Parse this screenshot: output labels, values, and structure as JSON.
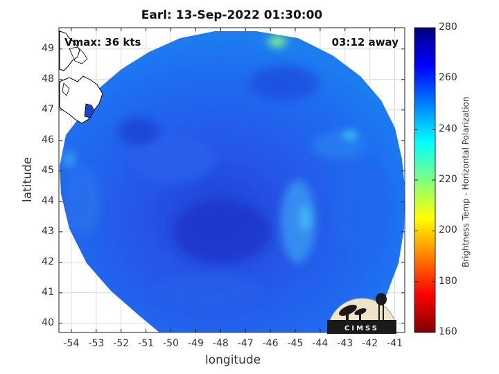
{
  "title": "Earl: 13-Sep-2022 01:30:00",
  "vmax_label": "Vmax: 36 kts",
  "away_label": "03:12 away",
  "xlabel": "longitude",
  "ylabel": "latitude",
  "logo_text": "CIMSS",
  "colorbar": {
    "label": "Brightness Temp - Horizontal Polarization",
    "min": 160,
    "max": 280,
    "ticks": [
      280,
      260,
      240,
      220,
      200,
      180,
      160
    ]
  },
  "chart_data": {
    "type": "heatmap",
    "title": "Earl: 13-Sep-2022 01:30:00",
    "xlabel": "longitude",
    "ylabel": "latitude",
    "xlim": [
      -54.5,
      -40.6
    ],
    "ylim": [
      39.7,
      49.7
    ],
    "xticks": [
      "-54",
      "-53",
      "-52",
      "-51",
      "-50",
      "-49",
      "-48",
      "-47",
      "-46",
      "-45",
      "-44",
      "-43",
      "-42",
      "-41"
    ],
    "yticks": [
      "40",
      "41",
      "42",
      "43",
      "44",
      "45",
      "46",
      "47",
      "48",
      "49"
    ],
    "grid": true,
    "swath_center": [
      -47.8,
      44.4
    ],
    "colormap": "jet",
    "color_range": [
      160,
      280
    ]
  }
}
